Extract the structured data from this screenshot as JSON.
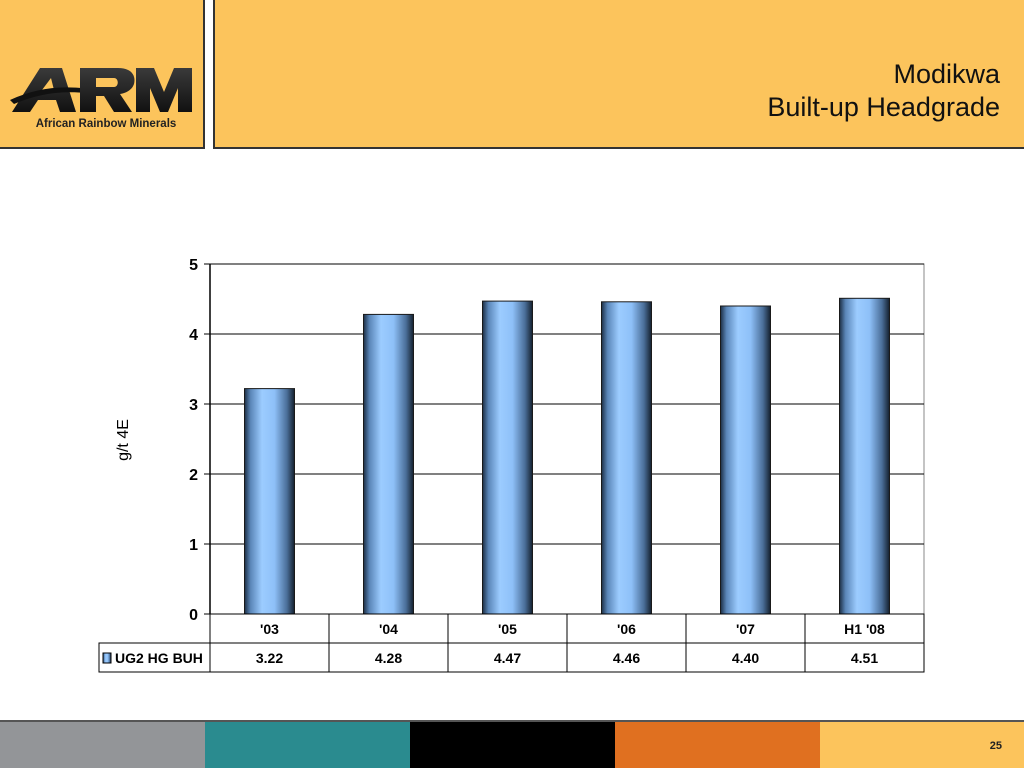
{
  "header": {
    "logo_text": "ARM",
    "logo_subtitle": "African Rainbow Minerals",
    "title_line1": "Modikwa",
    "title_line2": "Built-up Headgrade"
  },
  "chart_data": {
    "type": "bar",
    "categories": [
      "'03",
      "'04",
      "'05",
      "'06",
      "'07",
      "H1 '08"
    ],
    "series": [
      {
        "name": "UG2 HG BUH",
        "values": [
          3.22,
          4.28,
          4.47,
          4.46,
          4.4,
          4.51
        ],
        "value_labels": [
          "3.22",
          "4.28",
          "4.47",
          "4.46",
          "4.40",
          "4.51"
        ]
      }
    ],
    "ylabel": "g/t 4E",
    "ylim": [
      0,
      5
    ],
    "yticks": [
      0,
      1,
      2,
      3,
      4,
      5
    ],
    "grid": true,
    "legend": "data-table",
    "colors": {
      "bar": "#8ec0f8",
      "bar_edge": "#1a1a1a",
      "grid": "#000000"
    }
  },
  "footer": {
    "page_number": "25",
    "colors": [
      "#939598",
      "#2a8b8f",
      "#000000",
      "#e07020",
      "#fcc45c"
    ]
  }
}
